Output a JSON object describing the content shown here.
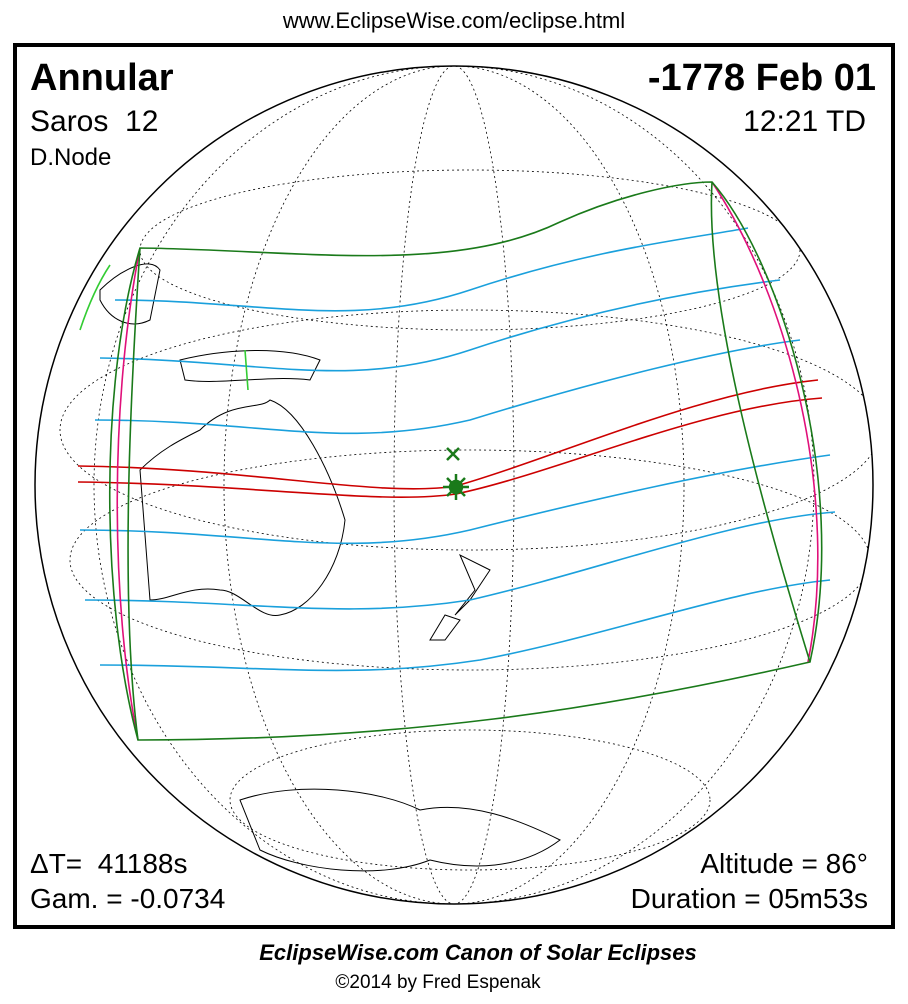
{
  "header": {
    "url": "www.EclipseWise.com/eclipse.html"
  },
  "panel": {
    "type": "Annular",
    "saros": "Saros  12",
    "node": "D.Node",
    "date": "-1778 Feb 01",
    "time": "12:21 TD",
    "delta_t": "ΔT=  41188s",
    "gamma": "Gam. = -0.0734",
    "altitude": "Altitude = 86°",
    "duration": "Duration = 05m53s"
  },
  "footer": {
    "title": "EclipseWise.com Canon of Solar Eclipses",
    "credit": "©2014 by Fred Espenak"
  }
}
